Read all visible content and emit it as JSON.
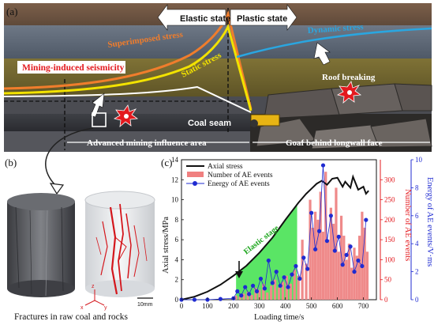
{
  "panel_a": {
    "label": "(a)",
    "elastic_state": "Elastic state",
    "plastic_state": "Plastic state",
    "superimposed_stress": "Superimposed stress",
    "dynamic_stress": "Dynamic stress",
    "static_stress": "Static stress",
    "mining_seismicity": "Mining-induced seismicity",
    "roof_breaking": "Roof breaking",
    "coal_seam": "Coal seam",
    "advanced_area": "Advanced mining influence area",
    "goaf": "Goaf behind longwall face",
    "colors": {
      "superimposed": "#f07d2c",
      "static": "#f2e200",
      "dynamic": "#2aa6e0",
      "seismicity": "#e3191e"
    }
  },
  "panel_b": {
    "label": "(b)",
    "caption": "Fractures in raw coal and rocks",
    "scale": "10mm",
    "axes": [
      "x",
      "y",
      "z"
    ]
  },
  "panel_c": {
    "label": "(c)",
    "chart_data": {
      "type": "bar",
      "xlabel": "Loading time/s",
      "ylabel_left": "Axial stress/MPa",
      "ylabel_right1": "Number of AE events",
      "ylabel_right2": "Energy of AE events/V·ms",
      "xlim": [
        0,
        750
      ],
      "ylim_left": [
        0,
        14
      ],
      "ylim_right1": [
        0,
        350
      ],
      "ylim_right2": [
        0,
        10
      ],
      "x_ticks": [
        "0",
        "100",
        "200",
        "300",
        "400",
        "500",
        "600",
        "700"
      ],
      "y_ticks_left": [
        "0",
        "2",
        "4",
        "6",
        "8",
        "10",
        "12",
        "14"
      ],
      "y_ticks_right1": [
        "0",
        "50",
        "100",
        "150",
        "200",
        "250",
        "300"
      ],
      "y_ticks_right2": [
        "0",
        "2",
        "4",
        "6",
        "8",
        "10"
      ],
      "annotation": "Elastic stage",
      "legend": [
        "Axial stress",
        "Number of AE events",
        "Energy of AE events"
      ],
      "series": [
        {
          "name": "Axial stress",
          "x": [
            0,
            50,
            100,
            150,
            200,
            250,
            300,
            350,
            400,
            450,
            480,
            500,
            520,
            540,
            560,
            580,
            600,
            620,
            630,
            650,
            660,
            680,
            700,
            710,
            720
          ],
          "y": [
            0,
            0.3,
            0.8,
            1.5,
            2.4,
            3.4,
            4.7,
            6.2,
            8.0,
            9.7,
            10.6,
            11.1,
            11.6,
            11.9,
            11.5,
            12.1,
            12.2,
            11.3,
            11.8,
            11.2,
            12.3,
            11.0,
            11.3,
            10.6,
            10.9
          ]
        },
        {
          "name": "Number of AE events",
          "x": [
            210,
            225,
            240,
            255,
            270,
            285,
            300,
            315,
            330,
            345,
            360,
            375,
            390,
            405,
            420,
            435,
            450,
            465,
            480,
            495,
            505,
            515,
            525,
            535,
            545,
            555,
            565,
            575,
            585,
            595,
            605,
            615,
            625,
            635,
            645,
            655,
            665,
            675,
            685,
            695,
            705,
            715
          ],
          "y": [
            10,
            8,
            15,
            20,
            12,
            30,
            25,
            40,
            18,
            35,
            50,
            30,
            45,
            60,
            40,
            75,
            60,
            150,
            90,
            250,
            180,
            220,
            200,
            270,
            170,
            320,
            150,
            230,
            190,
            280,
            120,
            210,
            160,
            100,
            140,
            80,
            130,
            110,
            160,
            220,
            180,
            120
          ]
        },
        {
          "name": "Energy of AE events",
          "x": [
            0,
            50,
            100,
            150,
            200,
            215,
            230,
            245,
            260,
            275,
            290,
            305,
            320,
            335,
            350,
            365,
            380,
            395,
            410,
            425,
            440,
            455,
            470,
            485,
            500,
            515,
            530,
            545,
            560,
            575,
            590,
            605,
            620,
            635,
            650,
            665,
            680,
            695,
            710
          ],
          "y": [
            0,
            0,
            0,
            0.05,
            0.1,
            0.6,
            0.3,
            0.9,
            0.4,
            1.0,
            0.6,
            1.5,
            0.8,
            2.8,
            1.2,
            2.0,
            1.0,
            1.6,
            0.9,
            1.8,
            2.4,
            1.5,
            3.0,
            2.2,
            6.2,
            3.6,
            4.9,
            9.6,
            4.2,
            6.0,
            3.5,
            4.5,
            2.5,
            3.2,
            3.8,
            2.0,
            2.8,
            2.4,
            5.7
          ]
        }
      ]
    }
  }
}
